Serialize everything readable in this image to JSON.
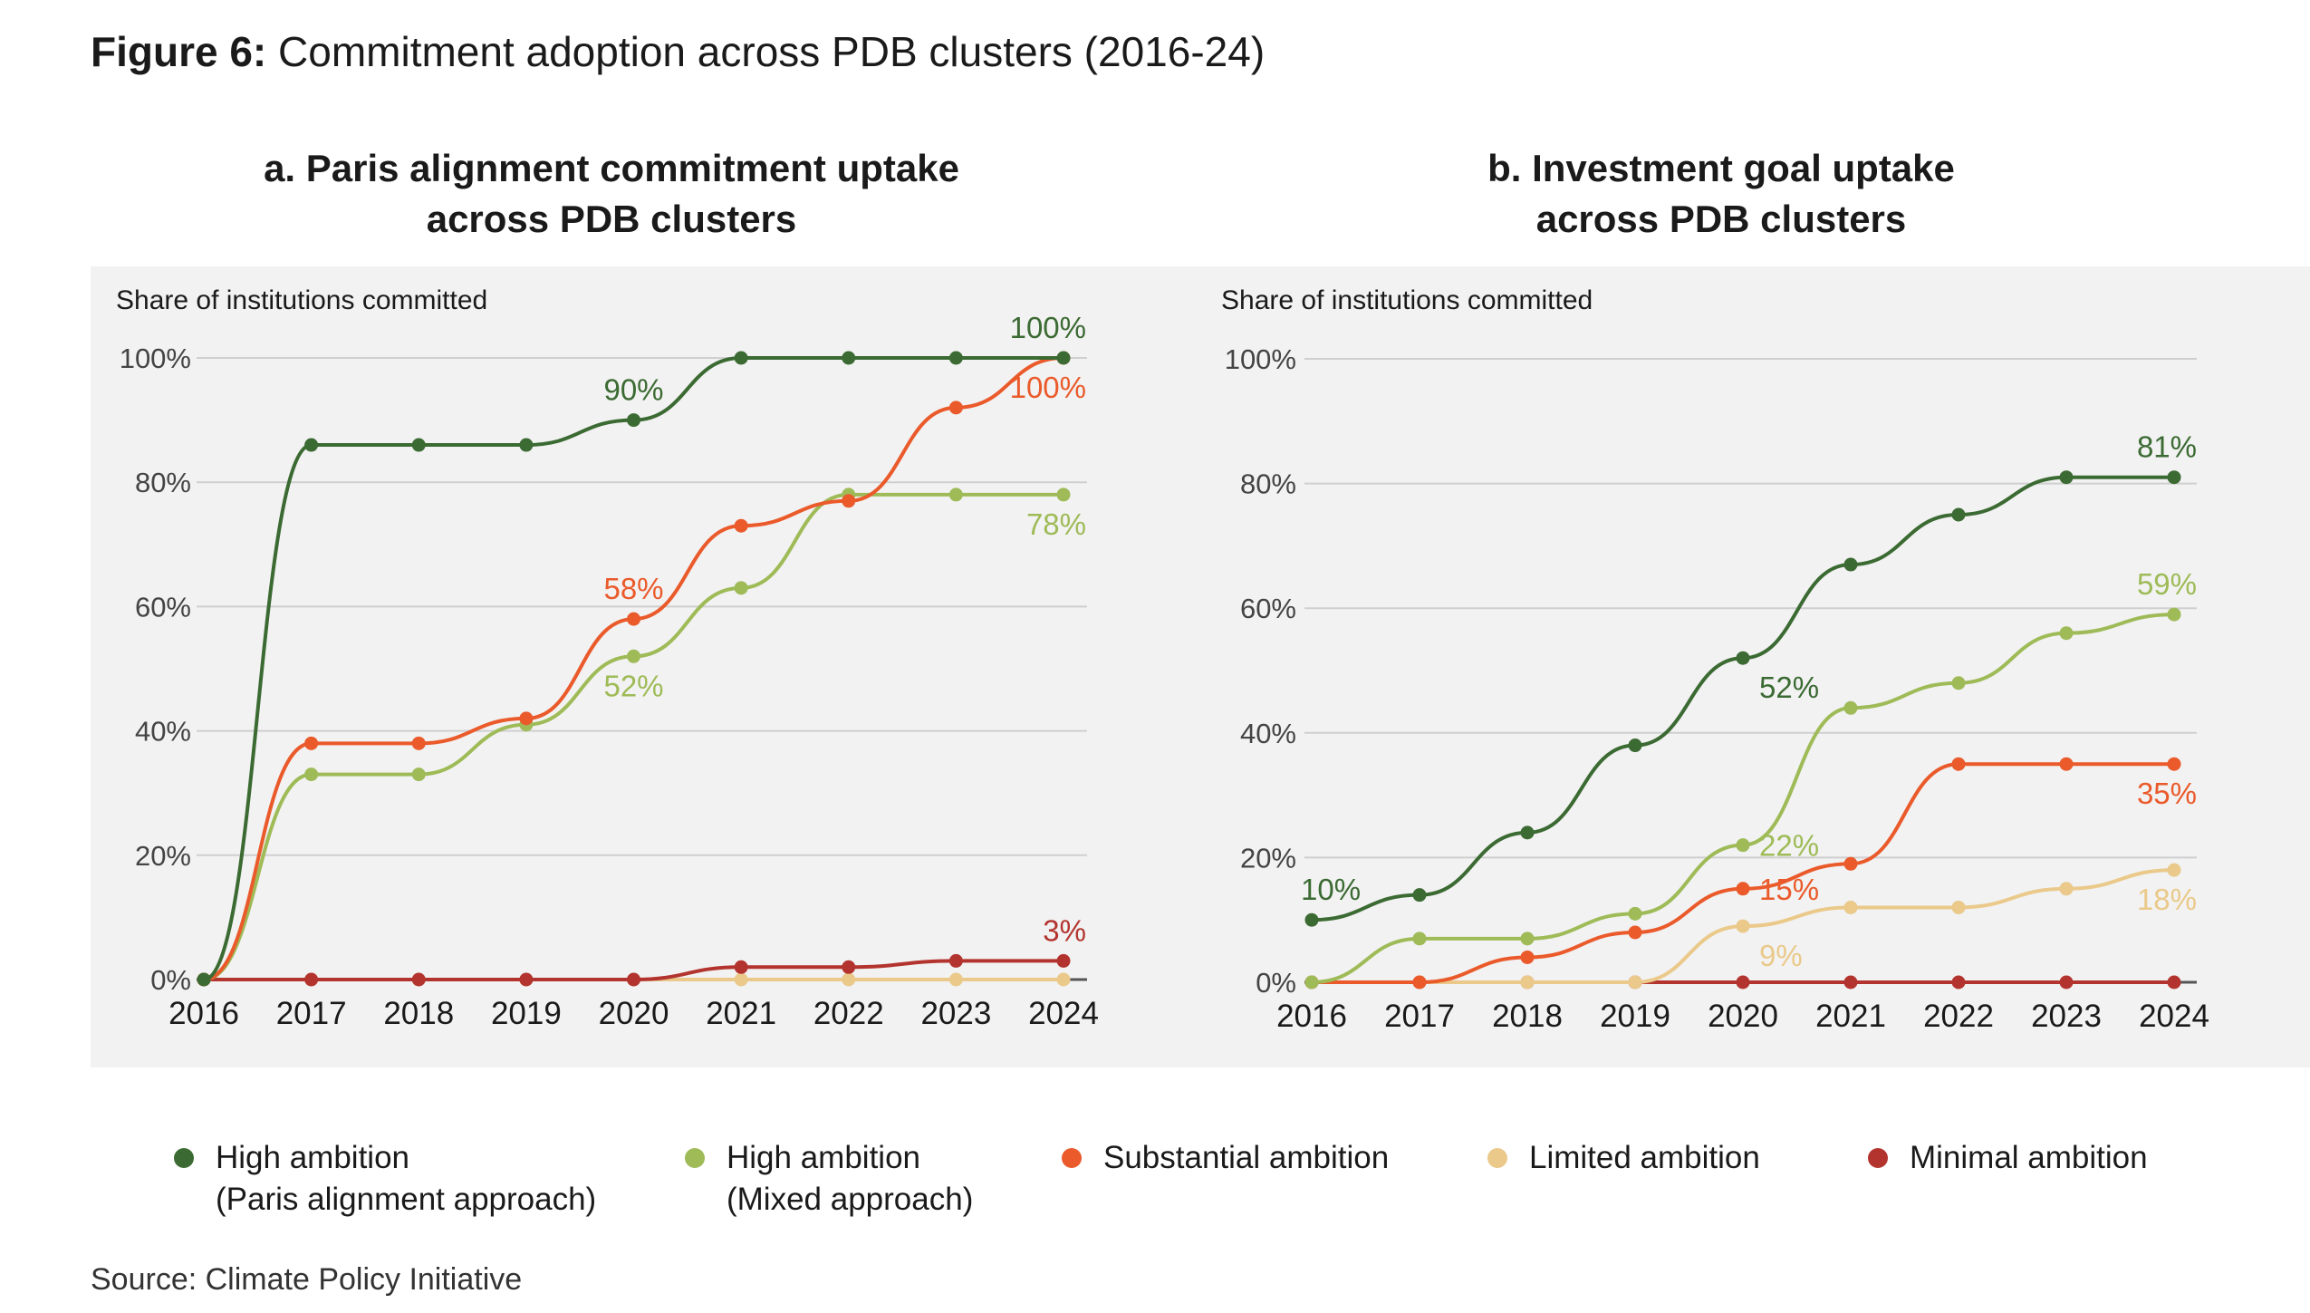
{
  "figure": {
    "label": "Figure 6:",
    "title": "Commitment adoption across PDB clusters (2016-24)"
  },
  "source": "Source: Climate Policy Initiative",
  "colors": {
    "high_paris": "#3b6a32",
    "high_mixed": "#9ebb57",
    "substantial": "#ea5a2b",
    "limited": "#eac98a",
    "minimal": "#b3342e"
  },
  "legend": [
    {
      "key": "high_paris",
      "line1": "High ambition",
      "line2": "(Paris alignment approach)"
    },
    {
      "key": "high_mixed",
      "line1": "High ambition",
      "line2": "(Mixed approach)"
    },
    {
      "key": "substantial",
      "line1": "Substantial ambition",
      "line2": ""
    },
    {
      "key": "limited",
      "line1": "Limited ambition",
      "line2": ""
    },
    {
      "key": "minimal",
      "line1": "Minimal ambition",
      "line2": ""
    }
  ],
  "chart_data": [
    {
      "type": "line",
      "title_line1": "a. Paris alignment commitment uptake",
      "title_line2": "across PDB clusters",
      "ylabel": "Share of institutions committed",
      "x": [
        "2016",
        "2017",
        "2018",
        "2019",
        "2020",
        "2021",
        "2022",
        "2023",
        "2024"
      ],
      "ylim": [
        0,
        100
      ],
      "yticks": [
        0,
        20,
        40,
        60,
        80,
        100
      ],
      "ytick_labels": [
        "0%",
        "20%",
        "40%",
        "60%",
        "80%",
        "100%"
      ],
      "grid": true,
      "series": [
        {
          "key": "limited",
          "values": [
            0,
            0,
            0,
            0,
            0,
            0,
            0,
            0,
            0
          ]
        },
        {
          "key": "minimal",
          "values": [
            0,
            0,
            0,
            0,
            0,
            2,
            2,
            3,
            3
          ]
        },
        {
          "key": "high_mixed",
          "values": [
            0,
            33,
            33,
            41,
            52,
            63,
            78,
            78,
            78
          ]
        },
        {
          "key": "substantial",
          "values": [
            0,
            38,
            38,
            42,
            58,
            73,
            77,
            92,
            100
          ]
        },
        {
          "key": "high_paris",
          "values": [
            0,
            86,
            86,
            86,
            90,
            100,
            100,
            100,
            100
          ]
        }
      ],
      "annotations": [
        {
          "key": "high_paris",
          "text": "90%",
          "x": "2020",
          "y": 90,
          "pos": "above"
        },
        {
          "key": "high_paris",
          "text": "100%",
          "x": "2024",
          "y": 100,
          "pos": "above"
        },
        {
          "key": "substantial",
          "text": "100%",
          "x": "2024",
          "y": 100,
          "pos": "below"
        },
        {
          "key": "high_mixed",
          "text": "78%",
          "x": "2024",
          "y": 78,
          "pos": "below"
        },
        {
          "key": "substantial",
          "text": "58%",
          "x": "2020",
          "y": 58,
          "pos": "above"
        },
        {
          "key": "high_mixed",
          "text": "52%",
          "x": "2020",
          "y": 52,
          "pos": "below"
        },
        {
          "key": "minimal",
          "text": "3%",
          "x": "2024",
          "y": 3,
          "pos": "above"
        }
      ]
    },
    {
      "type": "line",
      "title_line1": "b. Investment goal uptake",
      "title_line2": "across PDB clusters",
      "ylabel": "Share of institutions committed",
      "x": [
        "2016",
        "2017",
        "2018",
        "2019",
        "2020",
        "2021",
        "2022",
        "2023",
        "2024"
      ],
      "ylim": [
        0,
        100
      ],
      "yticks": [
        0,
        20,
        40,
        60,
        80,
        100
      ],
      "ytick_labels": [
        "0%",
        "20%",
        "40%",
        "60%",
        "80%",
        "100%"
      ],
      "grid": true,
      "series": [
        {
          "key": "minimal",
          "values": [
            0,
            0,
            0,
            0,
            0,
            0,
            0,
            0,
            0
          ]
        },
        {
          "key": "limited",
          "values": [
            0,
            0,
            0,
            0,
            9,
            12,
            12,
            15,
            18
          ]
        },
        {
          "key": "substantial",
          "values": [
            0,
            0,
            4,
            8,
            15,
            19,
            35,
            35,
            35
          ]
        },
        {
          "key": "high_mixed",
          "values": [
            0,
            7,
            7,
            11,
            22,
            44,
            48,
            56,
            59
          ]
        },
        {
          "key": "high_paris",
          "values": [
            10,
            14,
            24,
            38,
            52,
            67,
            75,
            81,
            81
          ]
        }
      ],
      "annotations": [
        {
          "key": "high_paris",
          "text": "10%",
          "x": "2016",
          "y": 10,
          "pos": "above"
        },
        {
          "key": "high_paris",
          "text": "52%",
          "x": "2020",
          "y": 52,
          "pos": "below-right"
        },
        {
          "key": "high_paris",
          "text": "81%",
          "x": "2024",
          "y": 81,
          "pos": "above"
        },
        {
          "key": "high_mixed",
          "text": "59%",
          "x": "2024",
          "y": 59,
          "pos": "above"
        },
        {
          "key": "high_mixed",
          "text": "22%",
          "x": "2020",
          "y": 22,
          "pos": "right"
        },
        {
          "key": "substantial",
          "text": "15%",
          "x": "2020",
          "y": 15,
          "pos": "right"
        },
        {
          "key": "limited",
          "text": "9%",
          "x": "2020",
          "y": 9,
          "pos": "below-right"
        },
        {
          "key": "substantial",
          "text": "35%",
          "x": "2024",
          "y": 35,
          "pos": "below"
        },
        {
          "key": "limited",
          "text": "18%",
          "x": "2024",
          "y": 18,
          "pos": "below"
        }
      ]
    }
  ]
}
